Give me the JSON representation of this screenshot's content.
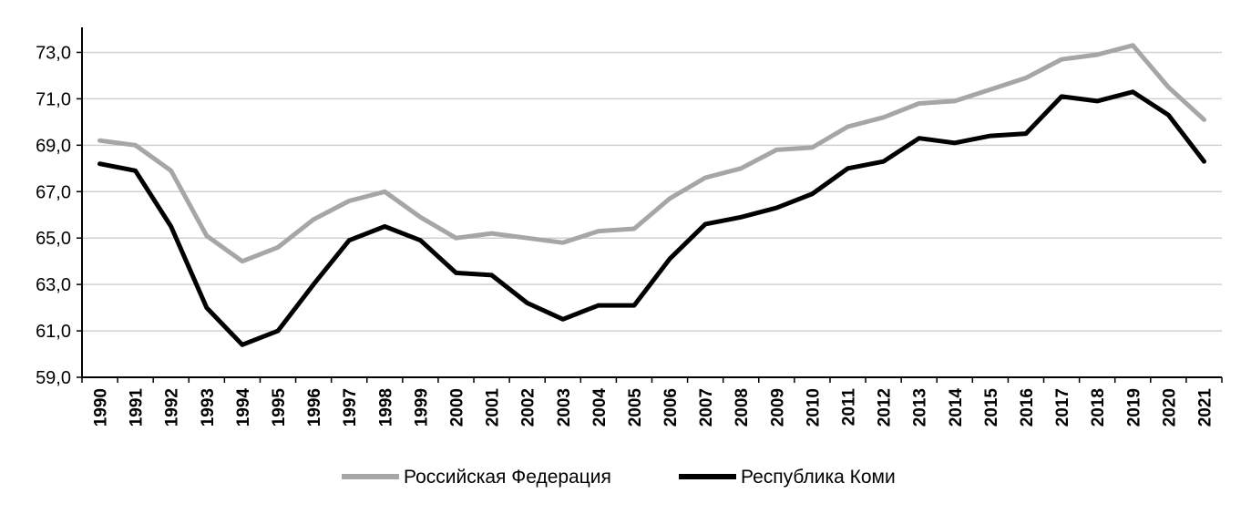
{
  "chart_data": {
    "type": "line",
    "title": "",
    "xlabel": "",
    "ylabel": "",
    "x": [
      "1990",
      "1991",
      "1992",
      "1993",
      "1994",
      "1995",
      "1996",
      "1997",
      "1998",
      "1999",
      "2000",
      "2001",
      "2002",
      "2003",
      "2004",
      "2005",
      "2006",
      "2007",
      "2008",
      "2009",
      "2010",
      "2011",
      "2012",
      "2013",
      "2014",
      "2015",
      "2016",
      "2017",
      "2018",
      "2019",
      "2020",
      "2021"
    ],
    "ylim": [
      59.0,
      74.0
    ],
    "y_ticks": [
      59.0,
      61.0,
      63.0,
      65.0,
      67.0,
      69.0,
      71.0,
      73.0
    ],
    "y_tick_labels": [
      "59,0",
      "61,0",
      "63,0",
      "65,0",
      "67,0",
      "69,0",
      "71,0",
      "73,0"
    ],
    "grid": true,
    "legend_position": "bottom",
    "series": [
      {
        "name": "Российская Федерация",
        "color": "#a6a6a6",
        "values": [
          69.2,
          69.0,
          67.9,
          65.1,
          64.0,
          64.6,
          65.8,
          66.6,
          67.0,
          65.9,
          65.0,
          65.2,
          65.0,
          64.8,
          65.3,
          65.4,
          66.7,
          67.6,
          68.0,
          68.8,
          68.9,
          69.8,
          70.2,
          70.8,
          70.9,
          71.4,
          71.9,
          72.7,
          72.9,
          73.3,
          71.5,
          70.1
        ]
      },
      {
        "name": "Республика Коми",
        "color": "#000000",
        "values": [
          68.2,
          67.9,
          65.5,
          62.0,
          60.4,
          61.0,
          63.0,
          64.9,
          65.5,
          64.9,
          63.5,
          63.4,
          62.2,
          61.5,
          62.1,
          62.1,
          64.1,
          65.6,
          65.9,
          66.3,
          66.9,
          68.0,
          68.3,
          69.3,
          69.1,
          69.4,
          69.5,
          71.1,
          70.9,
          71.3,
          70.3,
          68.3
        ]
      }
    ]
  }
}
